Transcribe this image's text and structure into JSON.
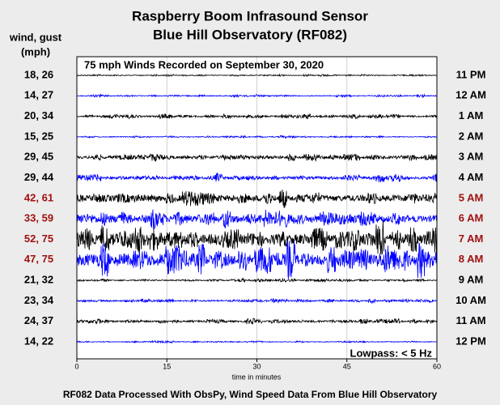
{
  "chart_data": {
    "type": "helicorder",
    "title": "Raspberry Boom Infrasound Sensor",
    "subtitle": "Blue Hill Observatory (RF082)",
    "left_header": [
      "wind, gust",
      "(mph)"
    ],
    "annotation": "75 mph Winds Recorded on September 30, 2020",
    "filter_note": "Lowpass: < 5 Hz",
    "xlabel": "time in minutes",
    "xlim": [
      0,
      60
    ],
    "xticks": [
      0,
      15,
      30,
      45,
      60
    ],
    "grid": true,
    "footer": "RF082 Data Processed With ObsPy, Wind Speed Data From Blue Hill Observatory",
    "rows": [
      {
        "wind": 18,
        "gust": 26,
        "label": "18, 26",
        "hour": "11 PM",
        "color": "#000000",
        "label_color": "#000000"
      },
      {
        "wind": 14,
        "gust": 27,
        "label": "14, 27",
        "hour": "12 AM",
        "color": "#0000ff",
        "label_color": "#000000"
      },
      {
        "wind": 20,
        "gust": 34,
        "label": "20, 34",
        "hour": "1 AM",
        "color": "#000000",
        "label_color": "#000000"
      },
      {
        "wind": 15,
        "gust": 25,
        "label": "15, 25",
        "hour": "2 AM",
        "color": "#0000ff",
        "label_color": "#000000"
      },
      {
        "wind": 29,
        "gust": 45,
        "label": "29, 45",
        "hour": "3 AM",
        "color": "#000000",
        "label_color": "#000000"
      },
      {
        "wind": 29,
        "gust": 44,
        "label": "29, 44",
        "hour": "4 AM",
        "color": "#0000ff",
        "label_color": "#000000"
      },
      {
        "wind": 42,
        "gust": 61,
        "label": "42, 61",
        "hour": "5 AM",
        "color": "#000000",
        "label_color": "#a01010"
      },
      {
        "wind": 33,
        "gust": 59,
        "label": "33, 59",
        "hour": "6 AM",
        "color": "#0000ff",
        "label_color": "#a01010"
      },
      {
        "wind": 52,
        "gust": 75,
        "label": "52, 75",
        "hour": "7 AM",
        "color": "#000000",
        "label_color": "#a01010"
      },
      {
        "wind": 47,
        "gust": 75,
        "label": "47, 75",
        "hour": "8 AM",
        "color": "#0000ff",
        "label_color": "#a01010"
      },
      {
        "wind": 21,
        "gust": 32,
        "label": "21, 32",
        "hour": "9 AM",
        "color": "#000000",
        "label_color": "#000000"
      },
      {
        "wind": 23,
        "gust": 34,
        "label": "23, 34",
        "hour": "10 AM",
        "color": "#0000ff",
        "label_color": "#000000"
      },
      {
        "wind": 24,
        "gust": 37,
        "label": "24, 37",
        "hour": "11 AM",
        "color": "#000000",
        "label_color": "#000000"
      },
      {
        "wind": 14,
        "gust": 22,
        "label": "14, 22",
        "hour": "12 PM",
        "color": "#0000ff",
        "label_color": "#000000"
      }
    ]
  }
}
